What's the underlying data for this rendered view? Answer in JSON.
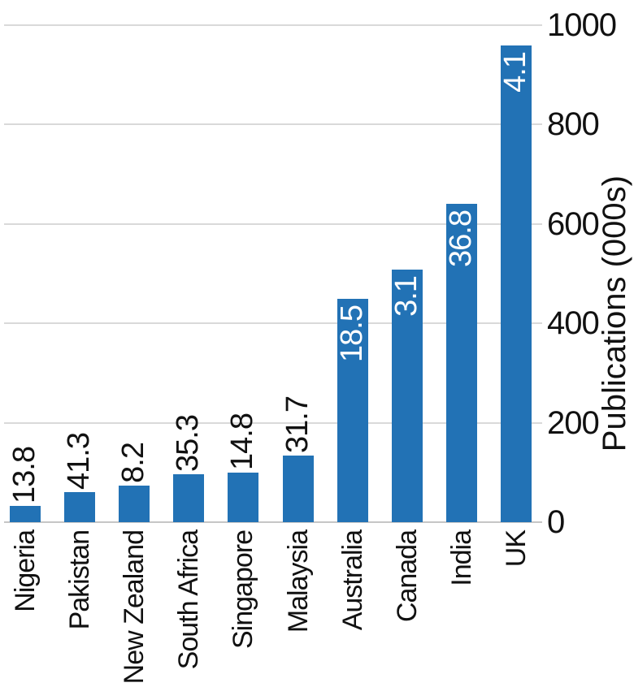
{
  "chart_data": {
    "type": "bar",
    "title": "",
    "categories": [
      "Nigeria",
      "Pakistan",
      "New Zealand",
      "South Africa",
      "Singapore",
      "Malaysia",
      "Australia",
      "Canada",
      "India",
      "UK"
    ],
    "series": [
      {
        "name": "Publications (000s)",
        "values": [
          33,
          60,
          74,
          96,
          100,
          134,
          449,
          508,
          640,
          959
        ]
      }
    ],
    "data_labels": [
      "13.8",
      "41.3",
      "8.2",
      "35.3",
      "14.8",
      "31.7",
      "18.5",
      "3.1",
      "36.8",
      "4.1"
    ],
    "data_label_placement": [
      "outside",
      "outside",
      "outside",
      "outside",
      "outside",
      "outside",
      "inside",
      "inside",
      "inside",
      "inside"
    ],
    "data_label_rotation_deg": -90,
    "category_label_rotation_deg": -90,
    "xlabel": "",
    "ylabel": "Publications (000s)",
    "y_axis_side": "right",
    "yticks": [
      0,
      200,
      400,
      600,
      800,
      1000
    ],
    "ylim": [
      0,
      1000
    ],
    "grid": "horizontal",
    "legend": "none",
    "colors": {
      "bar": "#2272b5",
      "gridline": "#d9d9d9",
      "baseline": "#c6c6c6",
      "text": "#111111",
      "label_on_bar": "#ffffff"
    }
  }
}
